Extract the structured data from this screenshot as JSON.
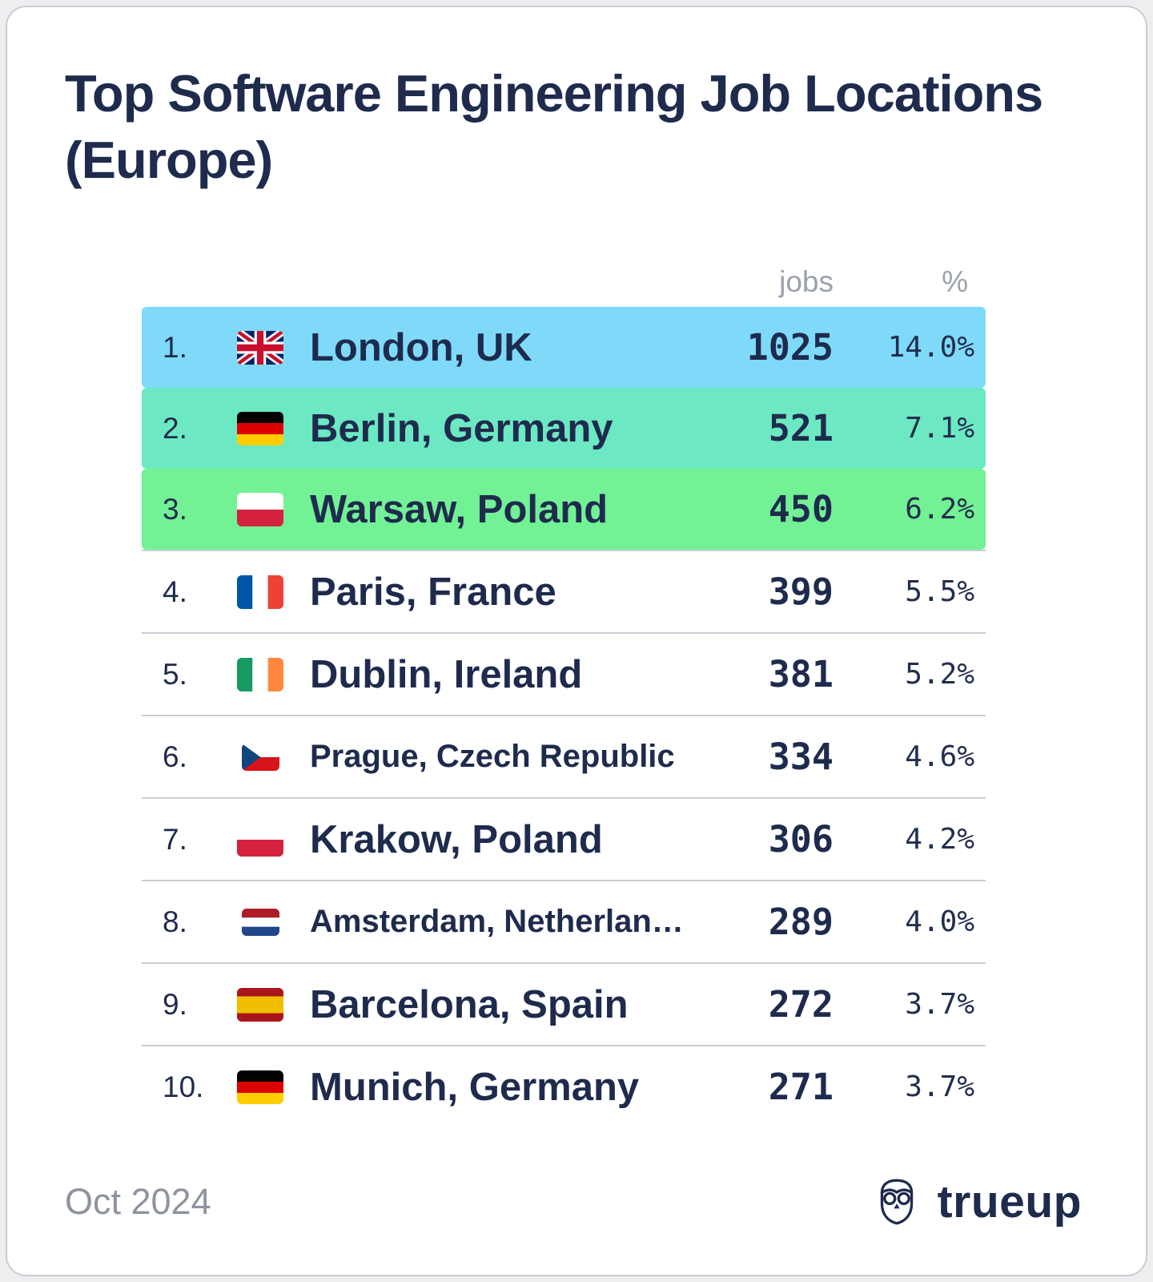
{
  "card": {
    "title": "Top Software Engineering Job Locations (Europe)"
  },
  "table": {
    "headers": {
      "jobs": "jobs",
      "percent": "%"
    }
  },
  "footer": {
    "date": "Oct 2024",
    "brand": "trueup"
  },
  "colors": {
    "title_text": "#1e2b4d",
    "muted_text": "#9aa2ac",
    "separator": "#c9ced5",
    "highlight_rank1": "#7edaf8",
    "highlight_rank2": "#6ce8c3",
    "highlight_rank3": "#72f195"
  },
  "chart_data": {
    "type": "table",
    "title": "Top Software Engineering Job Locations (Europe)",
    "columns": [
      "rank",
      "location",
      "jobs",
      "%"
    ],
    "legend_position": "none",
    "rows": [
      {
        "rank": "1.",
        "flag": "gb",
        "flag_icon": "uk-flag-icon",
        "location": "London, UK",
        "jobs": "1025",
        "percent": "14.0%",
        "highlight": "#7edaf8",
        "size": "large"
      },
      {
        "rank": "2.",
        "flag": "de",
        "flag_icon": "germany-flag-icon",
        "location": "Berlin, Germany",
        "jobs": "521",
        "percent": "7.1%",
        "highlight": "#6ce8c3",
        "size": "large"
      },
      {
        "rank": "3.",
        "flag": "pl",
        "flag_icon": "poland-flag-icon",
        "location": "Warsaw, Poland",
        "jobs": "450",
        "percent": "6.2%",
        "highlight": "#72f195",
        "size": "large"
      },
      {
        "rank": "4.",
        "flag": "fr",
        "flag_icon": "france-flag-icon",
        "location": "Paris, France",
        "jobs": "399",
        "percent": "5.5%",
        "highlight": null,
        "size": "large"
      },
      {
        "rank": "5.",
        "flag": "ie",
        "flag_icon": "ireland-flag-icon",
        "location": "Dublin, Ireland",
        "jobs": "381",
        "percent": "5.2%",
        "highlight": null,
        "size": "large"
      },
      {
        "rank": "6.",
        "flag": "cz",
        "flag_icon": "czech-flag-icon",
        "location": "Prague, Czech Republic",
        "jobs": "334",
        "percent": "4.6%",
        "highlight": null,
        "size": "small"
      },
      {
        "rank": "7.",
        "flag": "pl",
        "flag_icon": "poland-flag-icon",
        "location": "Krakow, Poland",
        "jobs": "306",
        "percent": "4.2%",
        "highlight": null,
        "size": "large"
      },
      {
        "rank": "8.",
        "flag": "nl",
        "flag_icon": "netherlands-flag-icon",
        "location": "Amsterdam, Netherlan…",
        "jobs": "289",
        "percent": "4.0%",
        "highlight": null,
        "size": "small"
      },
      {
        "rank": "9.",
        "flag": "es",
        "flag_icon": "spain-flag-icon",
        "location": "Barcelona, Spain",
        "jobs": "272",
        "percent": "3.7%",
        "highlight": null,
        "size": "large"
      },
      {
        "rank": "10.",
        "flag": "de",
        "flag_icon": "germany-flag-icon",
        "location": "Munich, Germany",
        "jobs": "271",
        "percent": "3.7%",
        "highlight": null,
        "size": "large"
      }
    ]
  }
}
